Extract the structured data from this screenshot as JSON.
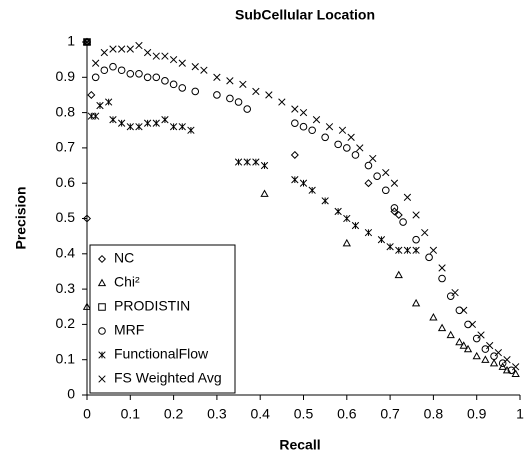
{
  "chart_data": {
    "type": "scatter",
    "title": "SubCellular Location",
    "x_label": "Recall",
    "y_label": "Precision",
    "xlim": [
      0,
      1
    ],
    "ylim": [
      0,
      1
    ],
    "xticks": [
      0,
      0.1,
      0.2,
      0.3,
      0.4,
      0.5,
      0.6,
      0.7,
      0.8,
      0.9,
      1
    ],
    "yticks": [
      0,
      0.1,
      0.2,
      0.3,
      0.4,
      0.5,
      0.6,
      0.7,
      0.8,
      0.9,
      1
    ],
    "legend": "lower left",
    "series": [
      {
        "name": "NC",
        "marker": "diamond",
        "color": "#000000",
        "x": [
          0,
          0,
          0.01,
          0.48,
          0.65,
          0.71,
          0.72
        ],
        "values": [
          1.0,
          0.5,
          0.85,
          0.68,
          0.6,
          0.52,
          0.51
        ]
      },
      {
        "name": "Chi²",
        "marker": "triangle",
        "color": "#000000",
        "x": [
          0,
          0,
          0.41,
          0.6,
          0.72,
          0.76,
          0.8,
          0.82,
          0.84,
          0.86,
          0.87,
          0.88,
          0.9,
          0.92,
          0.94,
          0.96,
          0.97,
          0.99
        ],
        "values": [
          1.0,
          0.25,
          0.57,
          0.43,
          0.34,
          0.26,
          0.22,
          0.19,
          0.17,
          0.15,
          0.14,
          0.13,
          0.11,
          0.1,
          0.09,
          0.08,
          0.07,
          0.06
        ]
      },
      {
        "name": "PRODISTIN",
        "marker": "square",
        "color": "#000000",
        "x": [
          0
        ],
        "values": [
          1.0
        ]
      },
      {
        "name": "MRF",
        "marker": "circle",
        "color": "#000000",
        "x": [
          0,
          0.02,
          0.04,
          0.06,
          0.08,
          0.1,
          0.12,
          0.14,
          0.16,
          0.18,
          0.2,
          0.22,
          0.25,
          0.3,
          0.33,
          0.35,
          0.37,
          0.48,
          0.5,
          0.52,
          0.55,
          0.58,
          0.6,
          0.62,
          0.65,
          0.67,
          0.69,
          0.71,
          0.73,
          0.76,
          0.79,
          0.82,
          0.84,
          0.86,
          0.88,
          0.9,
          0.92,
          0.94,
          0.96,
          0.98
        ],
        "values": [
          1.0,
          0.9,
          0.92,
          0.93,
          0.92,
          0.91,
          0.91,
          0.9,
          0.9,
          0.89,
          0.88,
          0.87,
          0.86,
          0.85,
          0.84,
          0.83,
          0.81,
          0.77,
          0.76,
          0.75,
          0.73,
          0.71,
          0.7,
          0.68,
          0.65,
          0.62,
          0.58,
          0.53,
          0.49,
          0.44,
          0.39,
          0.33,
          0.28,
          0.24,
          0.2,
          0.16,
          0.13,
          0.11,
          0.09,
          0.07
        ]
      },
      {
        "name": "FunctionalFlow",
        "marker": "asterisk",
        "color": "#000000",
        "x": [
          0.01,
          0.02,
          0.03,
          0.05,
          0.06,
          0.08,
          0.1,
          0.12,
          0.14,
          0.16,
          0.18,
          0.2,
          0.22,
          0.24,
          0.35,
          0.37,
          0.39,
          0.41,
          0.48,
          0.5,
          0.52,
          0.55,
          0.58,
          0.6,
          0.62,
          0.65,
          0.68,
          0.7,
          0.72,
          0.74,
          0.76
        ],
        "values": [
          0.79,
          0.79,
          0.82,
          0.83,
          0.78,
          0.77,
          0.76,
          0.76,
          0.77,
          0.77,
          0.78,
          0.76,
          0.76,
          0.75,
          0.66,
          0.66,
          0.66,
          0.65,
          0.61,
          0.6,
          0.58,
          0.55,
          0.52,
          0.5,
          0.48,
          0.46,
          0.44,
          0.42,
          0.41,
          0.41,
          0.41
        ]
      },
      {
        "name": "FS Weighted Avg",
        "marker": "x",
        "color": "#000000",
        "x": [
          0,
          0.02,
          0.04,
          0.06,
          0.08,
          0.1,
          0.12,
          0.14,
          0.16,
          0.18,
          0.2,
          0.22,
          0.25,
          0.27,
          0.3,
          0.33,
          0.36,
          0.39,
          0.42,
          0.45,
          0.48,
          0.5,
          0.53,
          0.56,
          0.59,
          0.61,
          0.63,
          0.66,
          0.69,
          0.71,
          0.74,
          0.76,
          0.78,
          0.8,
          0.82,
          0.85,
          0.87,
          0.89,
          0.91,
          0.93,
          0.95,
          0.97,
          0.99
        ],
        "values": [
          1.0,
          0.94,
          0.97,
          0.98,
          0.98,
          0.98,
          0.99,
          0.97,
          0.96,
          0.96,
          0.95,
          0.94,
          0.93,
          0.92,
          0.9,
          0.89,
          0.88,
          0.86,
          0.85,
          0.83,
          0.81,
          0.8,
          0.78,
          0.76,
          0.75,
          0.73,
          0.7,
          0.67,
          0.63,
          0.6,
          0.56,
          0.51,
          0.46,
          0.41,
          0.36,
          0.29,
          0.24,
          0.2,
          0.17,
          0.14,
          0.12,
          0.1,
          0.08
        ]
      }
    ]
  }
}
